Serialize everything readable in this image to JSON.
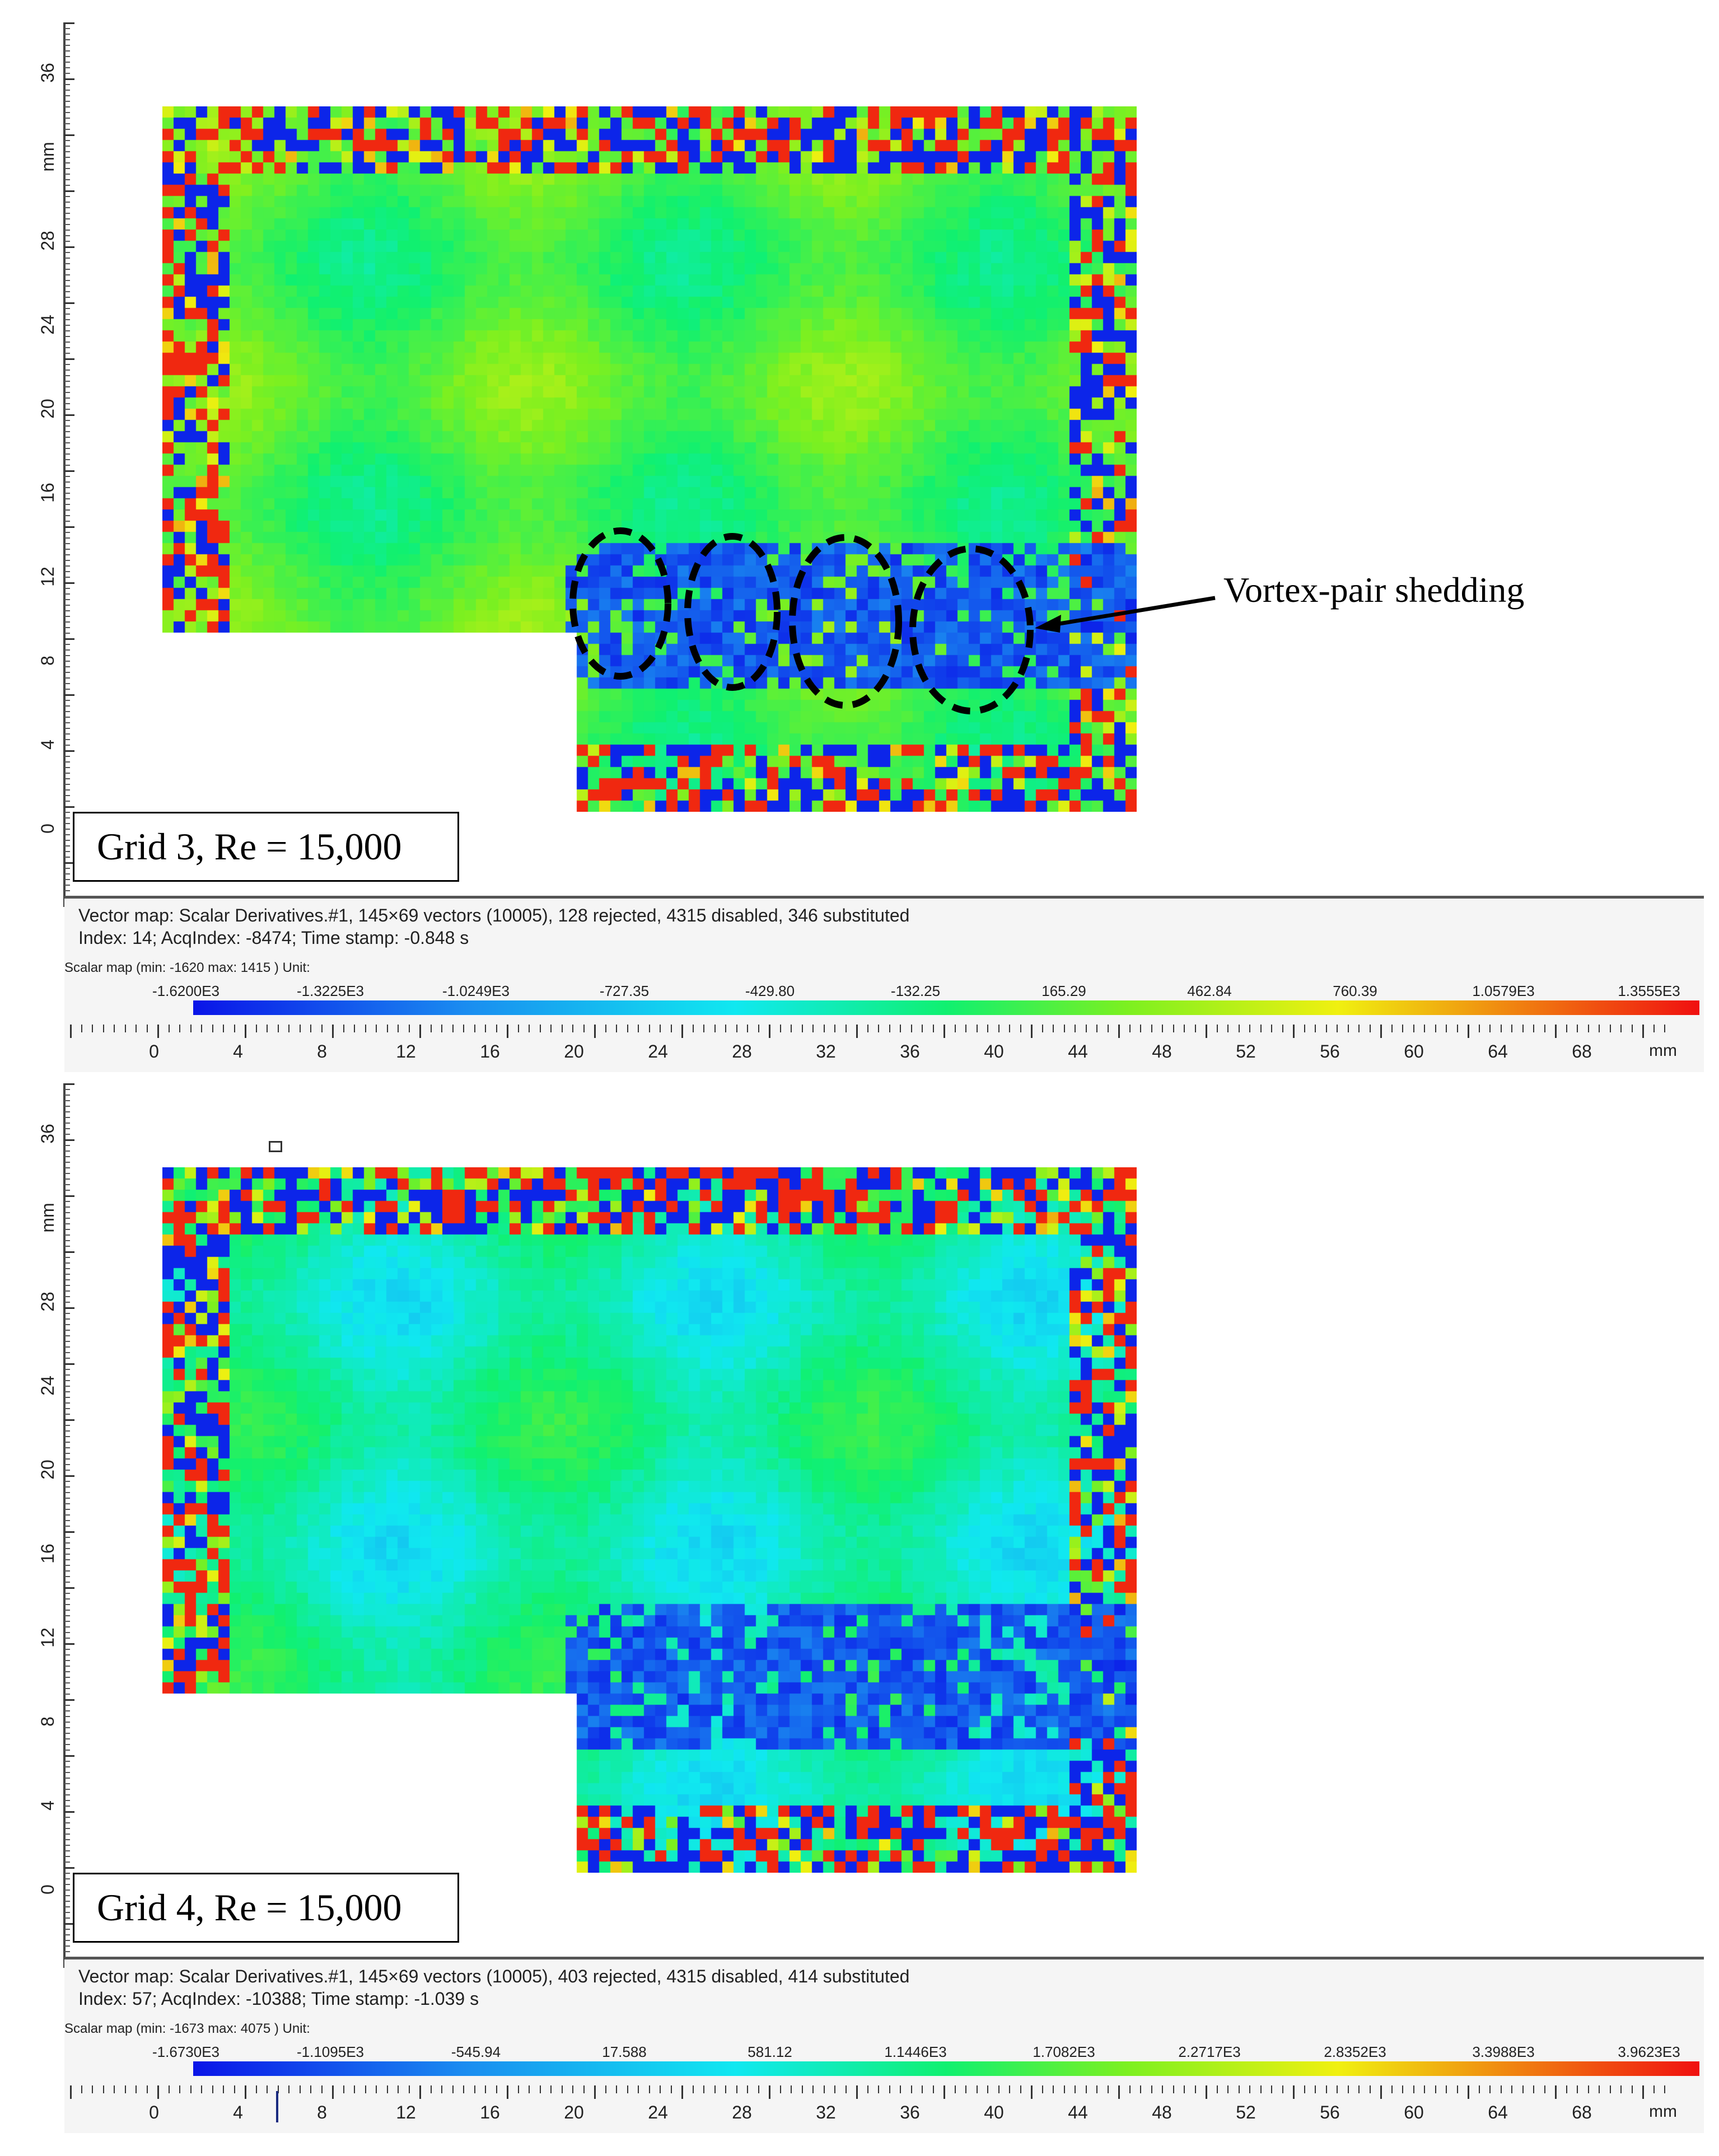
{
  "annotation": {
    "vortex_label": "Vortex-pair shedding"
  },
  "colorbar_colors": [
    "#0a14e8",
    "#1a8cf0",
    "#10e8f0",
    "#10f070",
    "#7cf020",
    "#f0f010",
    "#f08010",
    "#f01010"
  ],
  "panels": [
    {
      "caption": "Grid 3, Re = 15,000",
      "y_axis_unit": "mm",
      "y_axis_labels": [
        "0",
        "4",
        "8",
        "12",
        "16",
        "20",
        "24",
        "28",
        "36"
      ],
      "info_line1": "Vector map: Scalar Derivatives.#1, 145×69 vectors (10005), 128 rejected, 4315 disabled, 346 substituted",
      "info_line2": "Index: 14; AcqIndex: -8474; Time stamp: -0.848 s",
      "scalar_label": "Scalar map (min: -1620 max: 1415 ) Unit:",
      "colorbar_ticks": [
        "-1.6200E3",
        "-1.3225E3",
        "-1.0249E3",
        "-727.35",
        "-429.80",
        "-132.25",
        "165.29",
        "462.84",
        "760.39",
        "1.0579E3",
        "1.3555E3"
      ],
      "x_axis_labels": [
        "0",
        "4",
        "8",
        "12",
        "16",
        "20",
        "24",
        "28",
        "32",
        "36",
        "40",
        "44",
        "48",
        "52",
        "56",
        "60",
        "64",
        "68"
      ],
      "x_axis_unit": "mm",
      "scalar_range": {
        "min": -1620,
        "max": 1415
      },
      "vectors": {
        "grid": "145×69",
        "total": 10005,
        "rejected": 128,
        "disabled": 4315,
        "substituted": 346
      }
    },
    {
      "caption": "Grid 4, Re = 15,000",
      "y_axis_unit": "mm",
      "y_axis_labels": [
        "0",
        "4",
        "8",
        "12",
        "16",
        "20",
        "24",
        "28",
        "36"
      ],
      "info_line1": "Vector map: Scalar Derivatives.#1, 145×69 vectors (10005), 403 rejected, 4315 disabled, 414 substituted",
      "info_line2": "Index: 57; AcqIndex: -10388; Time stamp: -1.039 s",
      "scalar_label": "Scalar map (min: -1673 max: 4075 ) Unit:",
      "colorbar_ticks": [
        "-1.6730E3",
        "-1.1095E3",
        "-545.94",
        "17.588",
        "581.12",
        "1.1446E3",
        "1.7082E3",
        "2.2717E3",
        "2.8352E3",
        "3.3988E3",
        "3.9623E3"
      ],
      "x_axis_labels": [
        "0",
        "4",
        "8",
        "12",
        "16",
        "20",
        "24",
        "28",
        "32",
        "36",
        "40",
        "44",
        "48",
        "52",
        "56",
        "60",
        "64",
        "68"
      ],
      "x_axis_unit": "mm",
      "scalar_range": {
        "min": -1673,
        "max": 4075
      },
      "vectors": {
        "grid": "145×69",
        "total": 10005,
        "rejected": 403,
        "disabled": 4315,
        "substituted": 414
      }
    }
  ]
}
